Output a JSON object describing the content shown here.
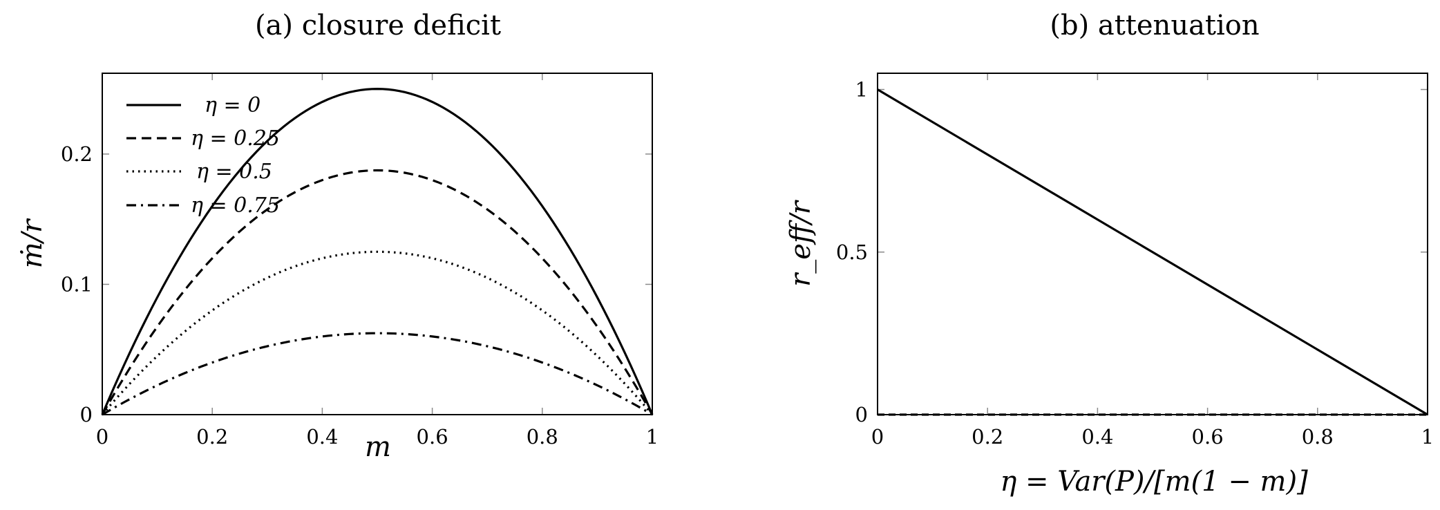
{
  "chart_data": [
    {
      "type": "line",
      "title": "(a) closure deficit",
      "xlabel": "m",
      "ylabel": "ṁ/r",
      "xlim": [
        0,
        1
      ],
      "ylim": [
        0,
        0.262
      ],
      "x_ticks": [
        0,
        0.2,
        0.4,
        0.6,
        0.8,
        1
      ],
      "x_tick_labels": [
        "0",
        "0.2",
        "0.4",
        "0.6",
        "0.8",
        "1"
      ],
      "y_ticks": [
        0,
        0.1,
        0.2
      ],
      "y_tick_labels": [
        "0",
        "0.1",
        "0.2"
      ],
      "grid": false,
      "legend_position": "top-left",
      "series": [
        {
          "name": "η = 0",
          "eta": 0,
          "dash": "solid",
          "x": [
            0,
            0.1,
            0.2,
            0.3,
            0.4,
            0.5,
            0.6,
            0.7,
            0.8,
            0.9,
            1
          ],
          "y": [
            0,
            0.09,
            0.16,
            0.21,
            0.24,
            0.25,
            0.24,
            0.21,
            0.16,
            0.09,
            0
          ]
        },
        {
          "name": "η = 0.25",
          "eta": 0.25,
          "dash": "dashed",
          "x": [
            0,
            0.1,
            0.2,
            0.3,
            0.4,
            0.5,
            0.6,
            0.7,
            0.8,
            0.9,
            1
          ],
          "y": [
            0,
            0.0675,
            0.12,
            0.1575,
            0.18,
            0.1875,
            0.18,
            0.1575,
            0.12,
            0.0675,
            0
          ]
        },
        {
          "name": "η = 0.5",
          "eta": 0.5,
          "dash": "dotted",
          "x": [
            0,
            0.1,
            0.2,
            0.3,
            0.4,
            0.5,
            0.6,
            0.7,
            0.8,
            0.9,
            1
          ],
          "y": [
            0,
            0.045,
            0.08,
            0.105,
            0.12,
            0.125,
            0.12,
            0.105,
            0.08,
            0.045,
            0
          ]
        },
        {
          "name": "η = 0.75",
          "eta": 0.75,
          "dash": "dashdot",
          "x": [
            0,
            0.1,
            0.2,
            0.3,
            0.4,
            0.5,
            0.6,
            0.7,
            0.8,
            0.9,
            1
          ],
          "y": [
            0,
            0.0225,
            0.04,
            0.0525,
            0.06,
            0.0625,
            0.06,
            0.0525,
            0.04,
            0.0225,
            0
          ]
        }
      ]
    },
    {
      "type": "line",
      "title": "(b) attenuation",
      "xlabel": "η = Var(P)/[m(1 − m)]",
      "ylabel": "r_eff/r",
      "xlim": [
        0,
        1
      ],
      "ylim": [
        0,
        1.05
      ],
      "x_ticks": [
        0,
        0.2,
        0.4,
        0.6,
        0.8,
        1
      ],
      "x_tick_labels": [
        "0",
        "0.2",
        "0.4",
        "0.6",
        "0.8",
        "1"
      ],
      "y_ticks": [
        0,
        0.5,
        1
      ],
      "y_tick_labels": [
        "0",
        "0.5",
        "1"
      ],
      "grid": false,
      "series": [
        {
          "dash": "solid",
          "x": [
            0,
            1
          ],
          "y": [
            1,
            0
          ]
        },
        {
          "dash": "dashed-light",
          "color": "#bbbbbb",
          "x": [
            0,
            1
          ],
          "y": [
            0,
            0
          ]
        }
      ]
    }
  ]
}
